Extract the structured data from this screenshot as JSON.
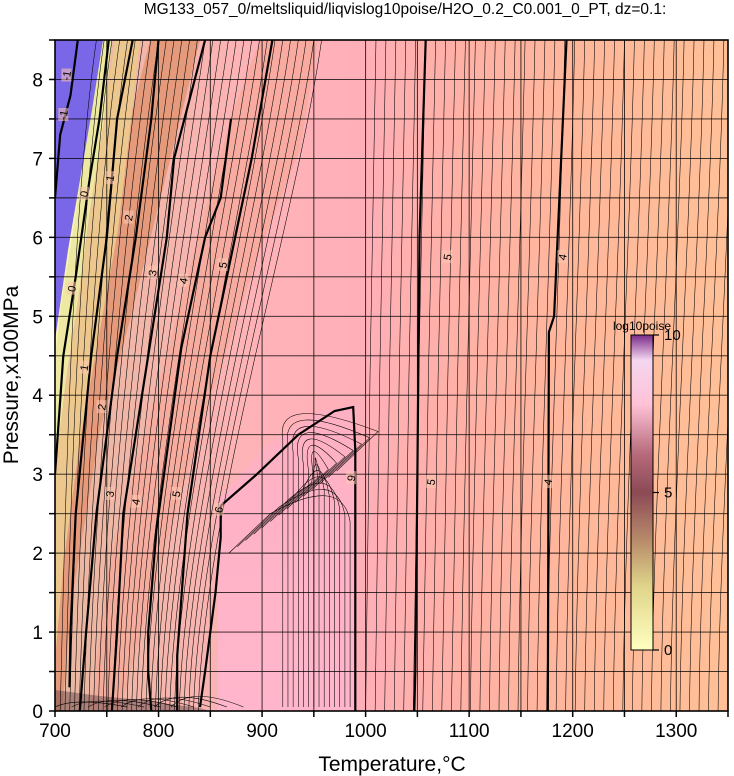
{
  "chart_data": {
    "type": "heatmap",
    "title": "MG133_057_0/meltsliquid/liqvislog10poise/H2O_0.2_C0.001_0_PT, dz=0.1:",
    "xlabel": "Temperature,°C",
    "ylabel": "Pressure,x100MPa",
    "xlim": [
      700,
      1350
    ],
    "ylim": [
      0,
      8.5
    ],
    "xticks": [
      "700",
      "800",
      "900",
      "1000",
      "1100",
      "1200",
      "1300"
    ],
    "yticks": [
      "0",
      "1",
      "2",
      "3",
      "4",
      "5",
      "6",
      "7",
      "8"
    ],
    "grid": true,
    "colorbar": {
      "title": "log10poise",
      "min": 0,
      "max": 10,
      "tick_labels": [
        "0",
        "5",
        "10"
      ],
      "placement": "right-inside"
    },
    "contour_labels": [
      {
        "text": "-1",
        "x": 708,
        "y": 7.55
      },
      {
        "text": "-1",
        "x": 711,
        "y": 8.05
      },
      {
        "text": "0",
        "x": 728,
        "y": 6.55
      },
      {
        "text": "0",
        "x": 716,
        "y": 5.35
      },
      {
        "text": "1",
        "x": 753,
        "y": 6.75
      },
      {
        "text": "1",
        "x": 728,
        "y": 4.35
      },
      {
        "text": "2",
        "x": 771,
        "y": 6.25
      },
      {
        "text": "2",
        "x": 745,
        "y": 3.85
      },
      {
        "text": "3",
        "x": 794,
        "y": 5.55
      },
      {
        "text": "3",
        "x": 753,
        "y": 2.75
      },
      {
        "text": "4",
        "x": 824,
        "y": 5.45
      },
      {
        "text": "4",
        "x": 778,
        "y": 2.65
      },
      {
        "text": "5",
        "x": 862,
        "y": 5.65
      },
      {
        "text": "5",
        "x": 817,
        "y": 2.75
      },
      {
        "text": "6",
        "x": 858,
        "y": 2.55
      },
      {
        "text": "9",
        "x": 986,
        "y": 2.95
      },
      {
        "text": "5",
        "x": 1079,
        "y": 5.75
      },
      {
        "text": "5",
        "x": 1063,
        "y": 2.9
      },
      {
        "text": "4",
        "x": 1190,
        "y": 5.75
      },
      {
        "text": "4",
        "x": 1176,
        "y": 2.9
      }
    ],
    "major_contours": [
      {
        "level": 5,
        "points": [
          [
            1058,
            8.5
          ],
          [
            1052,
            6.0
          ],
          [
            1050,
            3.0
          ],
          [
            1048,
            0.5
          ],
          [
            1047,
            0
          ]
        ]
      },
      {
        "level": 4,
        "points": [
          [
            1194,
            8.5
          ],
          [
            1182,
            5.0
          ],
          [
            1177,
            4.8
          ],
          [
            1176,
            0
          ]
        ]
      },
      {
        "level": 9,
        "points": [
          [
            990,
            0
          ],
          [
            990,
            3.3
          ],
          [
            988,
            3.85
          ],
          [
            970,
            3.8
          ],
          [
            935,
            3.5
          ],
          [
            895,
            3.0
          ],
          [
            860,
            2.6
          ]
        ]
      },
      {
        "level": 6,
        "points": [
          [
            840,
            0.05
          ],
          [
            845,
            0.5
          ],
          [
            855,
            1.5
          ],
          [
            860,
            2.2
          ],
          [
            860,
            2.6
          ]
        ]
      },
      {
        "level": 5,
        "points": [
          [
            818,
            0
          ],
          [
            818,
            0.7
          ],
          [
            828,
            2.5
          ],
          [
            850,
            4.5
          ],
          [
            890,
            7.0
          ],
          [
            910,
            8.5
          ]
        ]
      },
      {
        "level": 4,
        "points": [
          [
            793,
            0
          ],
          [
            790,
            0.5
          ],
          [
            790,
            1.0
          ],
          [
            798,
            2.3
          ],
          [
            822,
            4.6
          ],
          [
            845,
            6.0
          ],
          [
            860,
            6.5
          ],
          [
            870,
            7.5
          ]
        ]
      },
      {
        "level": 3,
        "points": [
          [
            755,
            0
          ],
          [
            760,
            1.0
          ],
          [
            766,
            2.5
          ],
          [
            790,
            4.5
          ],
          [
            808,
            6.0
          ],
          [
            815,
            7.0
          ],
          [
            845,
            8.5
          ]
        ]
      },
      {
        "level": 2,
        "points": [
          [
            724,
            0
          ],
          [
            730,
            1.0
          ],
          [
            740,
            2.5
          ],
          [
            760,
            4.5
          ],
          [
            778,
            6.0
          ],
          [
            793,
            7.5
          ],
          [
            800,
            8.5
          ]
        ]
      },
      {
        "level": 1,
        "points": [
          [
            714,
            0.3
          ],
          [
            715,
            1.0
          ],
          [
            720,
            2.5
          ],
          [
            735,
            4.5
          ],
          [
            750,
            6.0
          ],
          [
            760,
            7.5
          ],
          [
            775,
            8.5
          ]
        ]
      },
      {
        "level": 0,
        "points": [
          [
            700,
            3.0
          ],
          [
            708,
            4.5
          ],
          [
            720,
            5.5
          ],
          [
            733,
            6.7
          ],
          [
            743,
            7.5
          ],
          [
            752,
            8.5
          ]
        ]
      },
      {
        "level": -1,
        "points": [
          [
            700,
            6.5
          ],
          [
            705,
            7.3
          ],
          [
            715,
            7.8
          ],
          [
            722,
            8.5
          ]
        ]
      }
    ]
  }
}
